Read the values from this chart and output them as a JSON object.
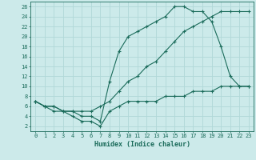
{
  "xlabel": "Humidex (Indice chaleur)",
  "bg_color": "#cceaea",
  "grid_color": "#b0d8d8",
  "line_color": "#1a6b5a",
  "xlim": [
    -0.5,
    23.5
  ],
  "ylim": [
    1,
    27
  ],
  "xticks": [
    0,
    1,
    2,
    3,
    4,
    5,
    6,
    7,
    8,
    9,
    10,
    11,
    12,
    13,
    14,
    15,
    16,
    17,
    18,
    19,
    20,
    21,
    22,
    23
  ],
  "yticks": [
    2,
    4,
    6,
    8,
    10,
    12,
    14,
    16,
    18,
    20,
    22,
    24,
    26
  ],
  "curve1_x": [
    0,
    1,
    2,
    3,
    4,
    5,
    6,
    7,
    8,
    9,
    10,
    11,
    12,
    13,
    14,
    15,
    16,
    17,
    18,
    19,
    20,
    21,
    22,
    23
  ],
  "curve1_y": [
    7,
    6,
    6,
    5,
    5,
    4,
    4,
    3,
    11,
    17,
    20,
    21,
    22,
    23,
    24,
    26,
    26,
    25,
    25,
    23,
    18,
    12,
    10,
    10
  ],
  "curve2_x": [
    0,
    1,
    2,
    3,
    4,
    5,
    6,
    7,
    8,
    9,
    10,
    11,
    12,
    13,
    14,
    15,
    16,
    17,
    18,
    19,
    20,
    21,
    22,
    23
  ],
  "curve2_y": [
    7,
    6,
    6,
    5,
    5,
    5,
    5,
    6,
    7,
    9,
    11,
    12,
    14,
    15,
    17,
    19,
    21,
    22,
    23,
    24,
    25,
    25,
    25,
    25
  ],
  "curve3_x": [
    0,
    1,
    2,
    3,
    4,
    5,
    6,
    7,
    8,
    9,
    10,
    11,
    12,
    13,
    14,
    15,
    16,
    17,
    18,
    19,
    20,
    21,
    22,
    23
  ],
  "curve3_y": [
    7,
    6,
    5,
    5,
    4,
    3,
    3,
    2,
    5,
    6,
    7,
    7,
    7,
    7,
    8,
    8,
    8,
    9,
    9,
    9,
    10,
    10,
    10,
    10
  ]
}
